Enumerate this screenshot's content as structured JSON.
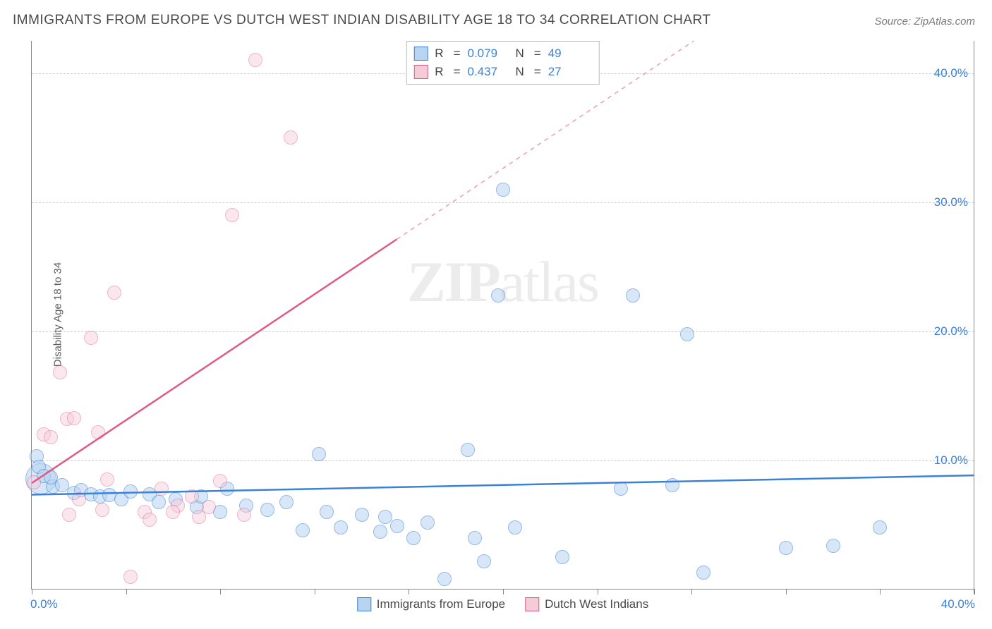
{
  "title": "IMMIGRANTS FROM EUROPE VS DUTCH WEST INDIAN DISABILITY AGE 18 TO 34 CORRELATION CHART",
  "source": "Source: ZipAtlas.com",
  "yaxis_label": "Disability Age 18 to 34",
  "watermark_bold": "ZIP",
  "watermark_rest": "atlas",
  "legend_top": {
    "rows": [
      {
        "swatch_fill": "#b9d4f1",
        "swatch_stroke": "#3b82d6",
        "r_label": "R",
        "r_eq": "=",
        "r_val": "0.079",
        "n_label": "N",
        "n_eq": "=",
        "n_val": "49"
      },
      {
        "swatch_fill": "#f6cbd8",
        "swatch_stroke": "#e05a86",
        "r_label": "R",
        "r_eq": "=",
        "r_val": "0.437",
        "n_label": "N",
        "n_eq": "=",
        "n_val": "27"
      }
    ]
  },
  "legend_bottom": [
    {
      "fill": "#b9d4f1",
      "stroke": "#3b82d6",
      "label": "Immigrants from Europe"
    },
    {
      "fill": "#f6cbd8",
      "stroke": "#e05a86",
      "label": "Dutch West Indians"
    }
  ],
  "chart": {
    "type": "scatter-correlation",
    "xlim": [
      0,
      40
    ],
    "ylim": [
      0,
      42.5
    ],
    "x_ticks": [
      0,
      4,
      8,
      12,
      16,
      20,
      24,
      28,
      32,
      36,
      40
    ],
    "y_gridlines": [
      10,
      20,
      30,
      40
    ],
    "y_tick_labels": [
      {
        "v": 10,
        "t": "10.0%"
      },
      {
        "v": 20,
        "t": "20.0%"
      },
      {
        "v": 30,
        "t": "30.0%"
      },
      {
        "v": 40,
        "t": "40.0%"
      }
    ],
    "x_tick_labels": {
      "left": "0.0%",
      "right": "40.0%"
    },
    "background_color": "#ffffff",
    "grid_color": "#cccccc",
    "series": [
      {
        "name": "Immigrants from Europe",
        "color_stroke": "#3b82d6",
        "color_fill": "#b9d4f1",
        "fill_opacity": 0.55,
        "marker_radius": 10,
        "trend": {
          "y_at_x0": 7.3,
          "y_at_xmax": 8.8,
          "solid_until_x": 40,
          "dashed": false
        },
        "points": [
          [
            0.2,
            10.3
          ],
          [
            0.3,
            9.5
          ],
          [
            0.5,
            8.8
          ],
          [
            0.9,
            8.0
          ],
          [
            0.8,
            8.7
          ],
          [
            1.3,
            8.1
          ],
          [
            1.8,
            7.5
          ],
          [
            2.1,
            7.7
          ],
          [
            2.5,
            7.4
          ],
          [
            2.9,
            7.2
          ],
          [
            3.3,
            7.3
          ],
          [
            3.8,
            7.0
          ],
          [
            4.2,
            7.6
          ],
          [
            5.0,
            7.4
          ],
          [
            5.4,
            6.8
          ],
          [
            6.1,
            7.0
          ],
          [
            7.0,
            6.4
          ],
          [
            7.2,
            7.2
          ],
          [
            8.0,
            6.0
          ],
          [
            8.3,
            7.8
          ],
          [
            9.1,
            6.5
          ],
          [
            10.0,
            6.2
          ],
          [
            10.8,
            6.8
          ],
          [
            11.5,
            4.6
          ],
          [
            12.2,
            10.5
          ],
          [
            12.5,
            6.0
          ],
          [
            13.1,
            4.8
          ],
          [
            14.0,
            5.8
          ],
          [
            14.8,
            4.5
          ],
          [
            15.0,
            5.6
          ],
          [
            15.5,
            4.9
          ],
          [
            16.2,
            4.0
          ],
          [
            16.8,
            5.2
          ],
          [
            17.5,
            0.8
          ],
          [
            18.5,
            10.8
          ],
          [
            18.8,
            4.0
          ],
          [
            19.2,
            2.2
          ],
          [
            19.8,
            22.8
          ],
          [
            20.0,
            31.0
          ],
          [
            20.5,
            4.8
          ],
          [
            22.5,
            2.5
          ],
          [
            25.0,
            7.8
          ],
          [
            25.5,
            22.8
          ],
          [
            27.2,
            8.1
          ],
          [
            27.8,
            19.8
          ],
          [
            28.5,
            1.3
          ],
          [
            32.0,
            3.2
          ],
          [
            34.0,
            3.4
          ],
          [
            36.0,
            4.8
          ]
        ],
        "big_points": [
          {
            "x": 0.4,
            "y": 8.6,
            "r": 22
          }
        ]
      },
      {
        "name": "Dutch West Indians",
        "color_stroke": "#e05a86",
        "color_fill": "#f6cbd8",
        "fill_opacity": 0.45,
        "marker_radius": 10,
        "trend": {
          "y_at_x0": 8.2,
          "y_at_xmax": 57.0,
          "solid_until_x": 15.5,
          "dashed": true
        },
        "points": [
          [
            0.1,
            8.3
          ],
          [
            0.5,
            12.0
          ],
          [
            0.8,
            11.8
          ],
          [
            1.2,
            16.8
          ],
          [
            1.5,
            13.2
          ],
          [
            1.8,
            13.3
          ],
          [
            1.6,
            5.8
          ],
          [
            2.5,
            19.5
          ],
          [
            2.8,
            12.2
          ],
          [
            3.2,
            8.5
          ],
          [
            3.5,
            23.0
          ],
          [
            4.2,
            1.0
          ],
          [
            4.8,
            6.0
          ],
          [
            5.5,
            7.8
          ],
          [
            6.2,
            6.5
          ],
          [
            6.8,
            7.2
          ],
          [
            7.1,
            5.6
          ],
          [
            7.5,
            6.4
          ],
          [
            8.0,
            8.4
          ],
          [
            8.5,
            29.0
          ],
          [
            9.0,
            5.8
          ],
          [
            9.5,
            41.0
          ],
          [
            11.0,
            35.0
          ],
          [
            6.0,
            6.0
          ],
          [
            5.0,
            5.4
          ],
          [
            3.0,
            6.2
          ],
          [
            2.0,
            7.0
          ]
        ],
        "big_points": []
      }
    ]
  }
}
